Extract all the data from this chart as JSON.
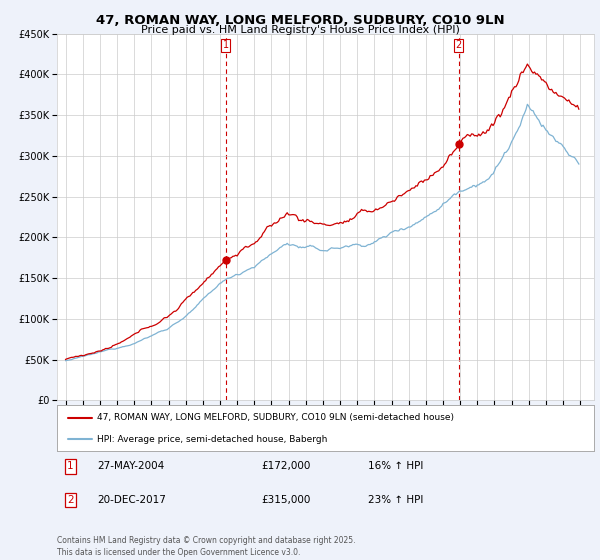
{
  "title": "47, ROMAN WAY, LONG MELFORD, SUDBURY, CO10 9LN",
  "subtitle": "Price paid vs. HM Land Registry's House Price Index (HPI)",
  "ylim": [
    0,
    450000
  ],
  "yticks": [
    0,
    50000,
    100000,
    150000,
    200000,
    250000,
    300000,
    350000,
    400000,
    450000
  ],
  "house_color": "#cc0000",
  "hpi_color": "#7fb3d3",
  "purchase1_date": "27-MAY-2004",
  "purchase1_price": 172000,
  "purchase1_label": "16% ↑ HPI",
  "purchase2_date": "20-DEC-2017",
  "purchase2_price": 315000,
  "purchase2_label": "23% ↑ HPI",
  "legend_house": "47, ROMAN WAY, LONG MELFORD, SUDBURY, CO10 9LN (semi-detached house)",
  "legend_hpi": "HPI: Average price, semi-detached house, Babergh",
  "footer": "Contains HM Land Registry data © Crown copyright and database right 2025.\nThis data is licensed under the Open Government Licence v3.0.",
  "bg_color": "#eef2fa",
  "plot_bg_color": "#ffffff",
  "grid_color": "#cccccc",
  "vline_color": "#cc0000",
  "start_year": 1995,
  "end_year": 2025
}
